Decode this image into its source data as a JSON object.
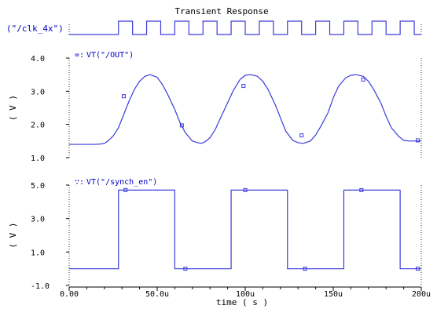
{
  "chart_data": {
    "title": "Transient Response",
    "type": "line",
    "xlabel": "time ( s )",
    "x_ticks": [
      "0.00",
      "50.0u",
      "100u",
      "150u",
      "200u"
    ],
    "xlim": [
      0,
      200
    ],
    "x_unit": "us",
    "colors": {
      "trace": "#3b3bdc",
      "axis": "#000000",
      "label": "#0000cc"
    },
    "panels": [
      {
        "id": "clk",
        "label": "(\"/clk_4x\")",
        "kind": "digital",
        "high_start": 28,
        "period": 16,
        "duty": 0.5,
        "end": 200
      },
      {
        "id": "out",
        "legend": "VT(\"/OUT\")",
        "legend_marker": "=:",
        "ylabel": "( V )",
        "ylim": [
          1.0,
          4.0
        ],
        "y_ticks": [
          "4.0",
          "3.0",
          "2.0",
          "1.0"
        ],
        "y_tick_values": [
          4.0,
          3.0,
          2.0,
          1.0
        ],
        "series": [
          {
            "x": [
              0,
              10,
              15,
              18,
              20,
              22,
              25,
              28,
              31,
              34,
              37,
              40,
              43,
              46,
              50,
              53,
              56,
              60,
              63,
              66,
              70,
              73,
              75,
              77,
              80,
              83,
              86,
              90,
              93,
              97,
              100,
              103,
              107,
              110,
              113,
              117,
              120,
              123,
              127,
              130,
              133,
              137,
              140,
              143,
              147,
              150,
              153,
              157,
              160,
              163,
              167,
              170,
              173,
              177,
              180,
              183,
              187,
              190,
              193,
              197,
              200
            ],
            "y": [
              1.4,
              1.4,
              1.4,
              1.41,
              1.43,
              1.5,
              1.65,
              1.9,
              2.3,
              2.7,
              3.05,
              3.3,
              3.45,
              3.5,
              3.42,
              3.2,
              2.9,
              2.45,
              2.05,
              1.75,
              1.5,
              1.45,
              1.43,
              1.47,
              1.6,
              1.85,
              2.2,
              2.65,
              3.0,
              3.35,
              3.48,
              3.5,
              3.45,
              3.3,
              3.05,
              2.6,
              2.2,
              1.8,
              1.52,
              1.45,
              1.43,
              1.5,
              1.68,
              1.95,
              2.35,
              2.8,
              3.15,
              3.4,
              3.48,
              3.5,
              3.45,
              3.3,
              3.05,
              2.65,
              2.25,
              1.9,
              1.65,
              1.52,
              1.5,
              1.5,
              1.5
            ]
          }
        ],
        "markers": [
          [
            31,
            2.85
          ],
          [
            64,
            1.97
          ],
          [
            99,
            3.16
          ],
          [
            132,
            1.67
          ],
          [
            167,
            3.35
          ],
          [
            198,
            1.52
          ]
        ]
      },
      {
        "id": "synch",
        "legend": "VT(\"/synch_en\")",
        "legend_marker": "∵:",
        "ylabel": "( V )",
        "ylim": [
          -1.0,
          5.0
        ],
        "y_ticks": [
          "5.0",
          "3.0",
          "1.0",
          "-1.0"
        ],
        "y_tick_values": [
          5.0,
          3.0,
          1.0,
          -1.0
        ],
        "series": [
          {
            "x": [
              0,
              28,
              28,
              60,
              60,
              92,
              92,
              124,
              124,
              156,
              156,
              188,
              188,
              200
            ],
            "y": [
              0.0,
              0.0,
              4.7,
              4.7,
              0.0,
              0.0,
              4.7,
              4.7,
              0.0,
              0.0,
              4.7,
              4.7,
              0.0,
              0.0
            ]
          }
        ],
        "markers": [
          [
            32,
            4.7
          ],
          [
            66,
            0.0
          ],
          [
            100,
            4.7
          ],
          [
            134,
            0.0
          ],
          [
            166,
            4.7
          ],
          [
            198,
            0.0
          ]
        ]
      }
    ]
  }
}
